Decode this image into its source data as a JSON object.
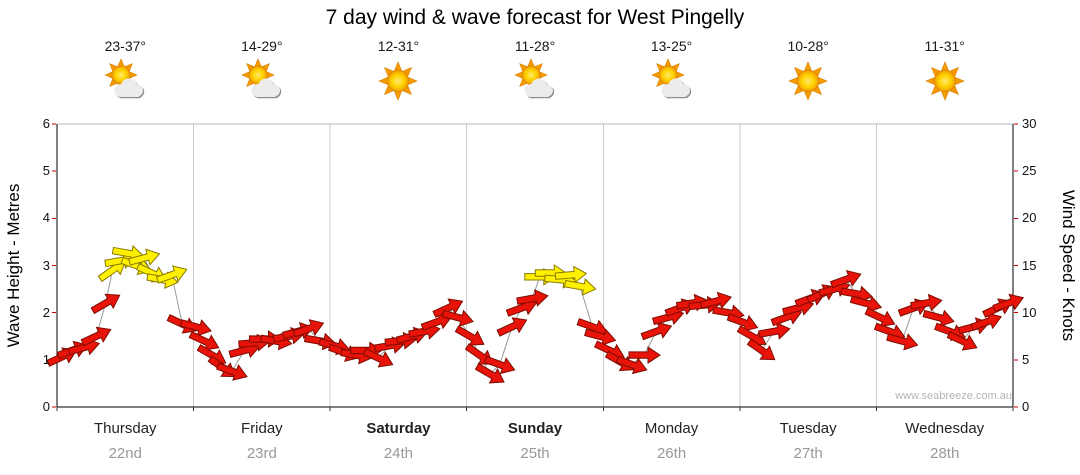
{
  "title": "7 day wind & wave forecast for West Pingelly",
  "watermark": "www.seabreeze.com.au",
  "left_axis": {
    "label": "Wave Height - Metres",
    "ticks": [
      0,
      1,
      2,
      3,
      4,
      5,
      6
    ]
  },
  "right_axis": {
    "label": "Wind Speed - Knots",
    "ticks": [
      0,
      5,
      10,
      15,
      20,
      25,
      30
    ]
  },
  "days": [
    {
      "name": "Thursday",
      "date": "22nd",
      "temp": "23-37°",
      "icon": "sun-cloud",
      "bold": false
    },
    {
      "name": "Friday",
      "date": "23rd",
      "temp": "14-29°",
      "icon": "sun-cloud",
      "bold": false
    },
    {
      "name": "Saturday",
      "date": "24th",
      "temp": "12-31°",
      "icon": "sun",
      "bold": true
    },
    {
      "name": "Sunday",
      "date": "25th",
      "temp": "11-28°",
      "icon": "sun-cloud",
      "bold": true
    },
    {
      "name": "Monday",
      "date": "26th",
      "temp": "13-25°",
      "icon": "sun-cloud",
      "bold": false
    },
    {
      "name": "Tuesday",
      "date": "27th",
      "temp": "10-28°",
      "icon": "sun",
      "bold": false
    },
    {
      "name": "Wednesday",
      "date": "28th",
      "temp": "11-31°",
      "icon": "sun",
      "bold": false
    }
  ],
  "chart_data": {
    "type": "scatter",
    "title": "7 day wind & wave forecast for West Pingelly",
    "categories": [
      "Thursday 22nd",
      "Friday 23rd",
      "Saturday 24th",
      "Sunday 25th",
      "Monday 26th",
      "Tuesday 27th",
      "Wednesday 28th"
    ],
    "ylabel_left": "Wave Height - Metres",
    "ylabel_right": "Wind Speed - Knots",
    "ylim_metres": [
      0,
      6
    ],
    "ylim_knots": [
      0,
      30
    ],
    "grid": "vertical-day-boundaries",
    "colors": {
      "red": "#E81309",
      "yellow": "#FFF000"
    },
    "arrow_fields": [
      "t_fraction_of_week",
      "wind_speed_knots",
      "direction_deg",
      "color_index_0red_1yellow"
    ],
    "arrows": [
      [
        0.005,
        5.3,
        -25,
        0
      ],
      [
        0.016,
        6.0,
        -20,
        0
      ],
      [
        0.028,
        6.3,
        -15,
        0
      ],
      [
        0.041,
        7.5,
        -25,
        0
      ],
      [
        0.051,
        11.0,
        -30,
        0
      ],
      [
        0.058,
        14.5,
        -35,
        1
      ],
      [
        0.066,
        15.5,
        -10,
        1
      ],
      [
        0.074,
        16.3,
        10,
        1
      ],
      [
        0.083,
        15.0,
        20,
        1
      ],
      [
        0.091,
        15.8,
        -15,
        1
      ],
      [
        0.099,
        14.2,
        25,
        1
      ],
      [
        0.11,
        13.5,
        10,
        1
      ],
      [
        0.12,
        14.0,
        -20,
        1
      ],
      [
        0.131,
        8.8,
        25,
        0
      ],
      [
        0.145,
        8.5,
        15,
        0
      ],
      [
        0.154,
        7.0,
        25,
        0
      ],
      [
        0.162,
        5.5,
        30,
        0
      ],
      [
        0.173,
        4.2,
        35,
        0
      ],
      [
        0.183,
        3.8,
        20,
        0
      ],
      [
        0.196,
        6.0,
        -15,
        0
      ],
      [
        0.206,
        6.8,
        -5,
        0
      ],
      [
        0.217,
        7.2,
        0,
        0
      ],
      [
        0.229,
        7.0,
        10,
        0
      ],
      [
        0.242,
        7.5,
        -10,
        0
      ],
      [
        0.252,
        8.0,
        -15,
        0
      ],
      [
        0.263,
        8.3,
        -20,
        0
      ],
      [
        0.275,
        7.0,
        10,
        0
      ],
      [
        0.29,
        6.5,
        15,
        0
      ],
      [
        0.3,
        5.8,
        20,
        0
      ],
      [
        0.313,
        5.5,
        10,
        0
      ],
      [
        0.323,
        6.0,
        0,
        0
      ],
      [
        0.336,
        5.2,
        25,
        0
      ],
      [
        0.348,
        6.5,
        -10,
        0
      ],
      [
        0.359,
        7.0,
        -5,
        0
      ],
      [
        0.371,
        7.5,
        -15,
        0
      ],
      [
        0.384,
        8.0,
        -10,
        0
      ],
      [
        0.397,
        9.0,
        -20,
        0
      ],
      [
        0.409,
        10.5,
        -25,
        0
      ],
      [
        0.419,
        9.5,
        15,
        0
      ],
      [
        0.432,
        7.5,
        30,
        0
      ],
      [
        0.442,
        5.5,
        35,
        0
      ],
      [
        0.453,
        3.5,
        30,
        0
      ],
      [
        0.463,
        4.5,
        20,
        0
      ],
      [
        0.476,
        8.5,
        -25,
        0
      ],
      [
        0.486,
        10.5,
        -20,
        0
      ],
      [
        0.497,
        11.5,
        -10,
        0
      ],
      [
        0.505,
        13.8,
        0,
        1
      ],
      [
        0.516,
        14.2,
        0,
        1
      ],
      [
        0.526,
        13.5,
        5,
        1
      ],
      [
        0.537,
        14.0,
        -5,
        1
      ],
      [
        0.547,
        12.8,
        10,
        1
      ],
      [
        0.56,
        8.5,
        20,
        0
      ],
      [
        0.568,
        7.5,
        15,
        0
      ],
      [
        0.578,
        6.0,
        25,
        0
      ],
      [
        0.589,
        4.8,
        30,
        0
      ],
      [
        0.601,
        4.5,
        20,
        0
      ],
      [
        0.614,
        5.5,
        0,
        0
      ],
      [
        0.627,
        8.0,
        -20,
        0
      ],
      [
        0.639,
        9.5,
        -15,
        0
      ],
      [
        0.652,
        10.5,
        -20,
        0
      ],
      [
        0.664,
        11.0,
        -10,
        0
      ],
      [
        0.677,
        10.8,
        -5,
        0
      ],
      [
        0.689,
        11.2,
        -15,
        0
      ],
      [
        0.702,
        10.0,
        10,
        0
      ],
      [
        0.717,
        9.0,
        20,
        0
      ],
      [
        0.727,
        7.5,
        30,
        0
      ],
      [
        0.737,
        6.0,
        35,
        0
      ],
      [
        0.75,
        8.0,
        -10,
        0
      ],
      [
        0.763,
        9.5,
        -20,
        0
      ],
      [
        0.775,
        10.5,
        -15,
        0
      ],
      [
        0.788,
        11.5,
        -20,
        0
      ],
      [
        0.8,
        12.0,
        -25,
        0
      ],
      [
        0.813,
        12.5,
        -15,
        0
      ],
      [
        0.825,
        13.5,
        -20,
        0
      ],
      [
        0.836,
        12.0,
        10,
        0
      ],
      [
        0.846,
        11.0,
        15,
        0
      ],
      [
        0.861,
        9.5,
        25,
        0
      ],
      [
        0.871,
        8.0,
        20,
        0
      ],
      [
        0.884,
        7.0,
        15,
        0
      ],
      [
        0.896,
        10.5,
        -20,
        0
      ],
      [
        0.909,
        11.0,
        -10,
        0
      ],
      [
        0.922,
        9.5,
        15,
        0
      ],
      [
        0.934,
        8.0,
        20,
        0
      ],
      [
        0.947,
        7.0,
        25,
        0
      ],
      [
        0.959,
        8.5,
        -15,
        0
      ],
      [
        0.972,
        9.0,
        -20,
        0
      ],
      [
        0.984,
        10.5,
        -25,
        0
      ],
      [
        0.995,
        11.0,
        -20,
        0
      ]
    ]
  }
}
